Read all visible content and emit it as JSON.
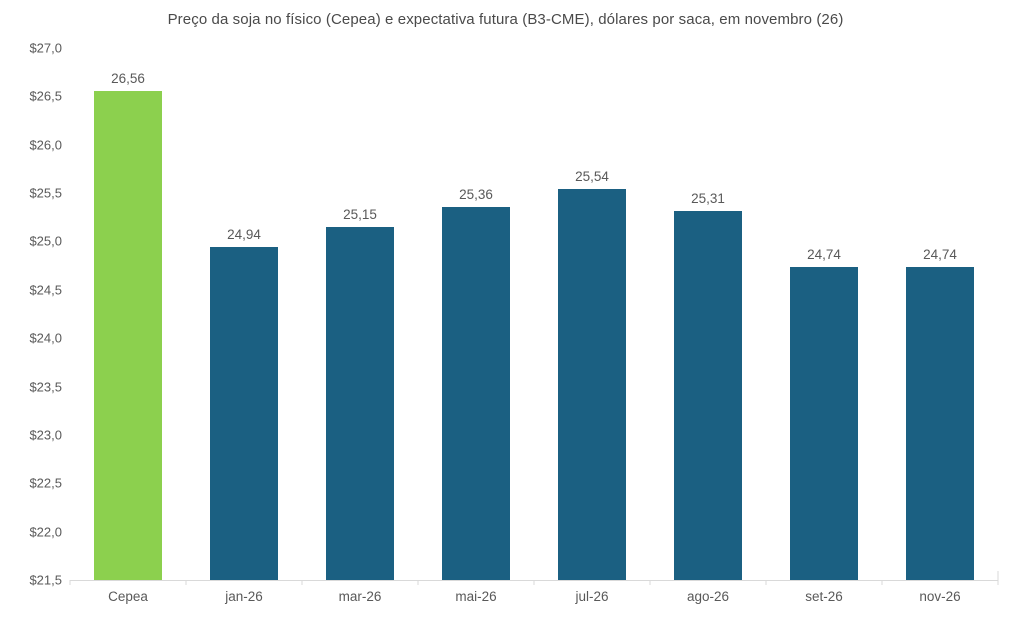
{
  "chart_data": {
    "type": "bar",
    "title": "Preço da soja no físico (Cepea) e expectativa futura (B3-CME), dólares por saca, em novembro (26)",
    "categories": [
      "Cepea",
      "jan-26",
      "mar-26",
      "mai-26",
      "jul-26",
      "ago-26",
      "set-26",
      "nov-26"
    ],
    "values": [
      26.56,
      24.94,
      25.15,
      25.36,
      25.54,
      25.31,
      24.74,
      24.74
    ],
    "value_labels": [
      "26,56",
      "24,94",
      "25,15",
      "25,36",
      "25,54",
      "25,31",
      "24,74",
      "24,74"
    ],
    "bar_colors": [
      "#8cd04e",
      "#1b6082",
      "#1b6082",
      "#1b6082",
      "#1b6082",
      "#1b6082",
      "#1b6082",
      "#1b6082"
    ],
    "series_colors": {
      "cepea_spot": "#8cd04e",
      "b3_cme_futures": "#1b6082"
    },
    "ylim": [
      21.5,
      27.0
    ],
    "y_tick_step": 0.5,
    "y_tick_labels": [
      "$27,0",
      "$26,5",
      "$26,0",
      "$25,5",
      "$25,0",
      "$24,5",
      "$24,0",
      "$23,5",
      "$23,0",
      "$22,5",
      "$22,0",
      "$21,5"
    ],
    "xlabel": "",
    "ylabel": "",
    "grid": false,
    "legend": "none",
    "axis_color": "#d9d9d9",
    "label_color": "#595959"
  }
}
